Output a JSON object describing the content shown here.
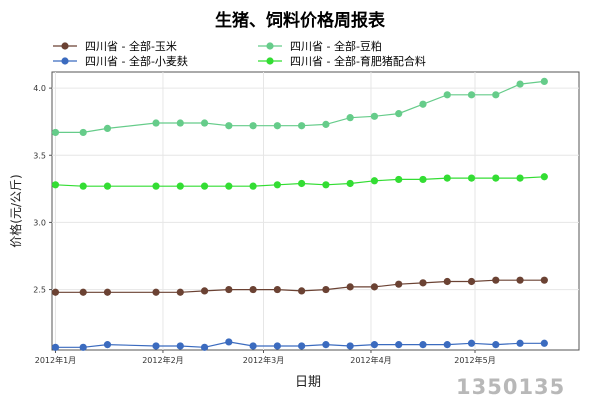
{
  "chart_data": {
    "type": "line",
    "title": "生猪、饲料价格周报表",
    "xlabel": "日期",
    "ylabel": "价格(元/公斤)",
    "x_tick_labels": [
      "2012年1月",
      "2012年2月",
      "2012年3月",
      "2012年4月",
      "2012年5月"
    ],
    "y_ticks": [
      2.5,
      3.0,
      3.5,
      4.0
    ],
    "y_tick_labels": [
      "2.5",
      "3.0",
      "3.5",
      "4.0"
    ],
    "ylim": [
      2.05,
      4.12
    ],
    "grid": true,
    "legend_position": "top",
    "x_dates": [
      "2012-01-01",
      "2012-01-09",
      "2012-01-16",
      "2012-01-30",
      "2012-02-06",
      "2012-02-13",
      "2012-02-20",
      "2012-02-27",
      "2012-03-05",
      "2012-03-12",
      "2012-03-19",
      "2012-03-26",
      "2012-04-02",
      "2012-04-09",
      "2012-04-16",
      "2012-04-23",
      "2012-04-30",
      "2012-05-07",
      "2012-05-14",
      "2012-05-21"
    ],
    "series": [
      {
        "name": "四川省 - 全部-玉米",
        "color": "#6b4233",
        "values": [
          2.48,
          2.48,
          2.48,
          2.48,
          2.48,
          2.49,
          2.5,
          2.5,
          2.5,
          2.49,
          2.5,
          2.52,
          2.52,
          2.54,
          2.55,
          2.56,
          2.56,
          2.57,
          2.57,
          2.57
        ]
      },
      {
        "name": "四川省 - 全部-豆粕",
        "color": "#66cc8a",
        "values": [
          3.67,
          3.67,
          3.7,
          3.74,
          3.74,
          3.74,
          3.72,
          3.72,
          3.72,
          3.72,
          3.73,
          3.78,
          3.79,
          3.81,
          3.88,
          3.95,
          3.95,
          3.95,
          4.03,
          4.05
        ]
      },
      {
        "name": "四川省 - 全部-小麦麸",
        "color": "#3b6bbf",
        "values": [
          2.07,
          2.07,
          2.09,
          2.08,
          2.08,
          2.07,
          2.11,
          2.08,
          2.08,
          2.08,
          2.09,
          2.08,
          2.09,
          2.09,
          2.09,
          2.09,
          2.1,
          2.09,
          2.1,
          2.1
        ]
      },
      {
        "name": "四川省 - 全部-育肥猪配合料",
        "color": "#33dd33",
        "values": [
          3.28,
          3.27,
          3.27,
          3.27,
          3.27,
          3.27,
          3.27,
          3.27,
          3.28,
          3.29,
          3.28,
          3.29,
          3.31,
          3.32,
          3.32,
          3.33,
          3.33,
          3.33,
          3.33,
          3.34
        ]
      }
    ]
  },
  "watermark": {
    "text": "1350135",
    "color": "#b8b8b8"
  }
}
